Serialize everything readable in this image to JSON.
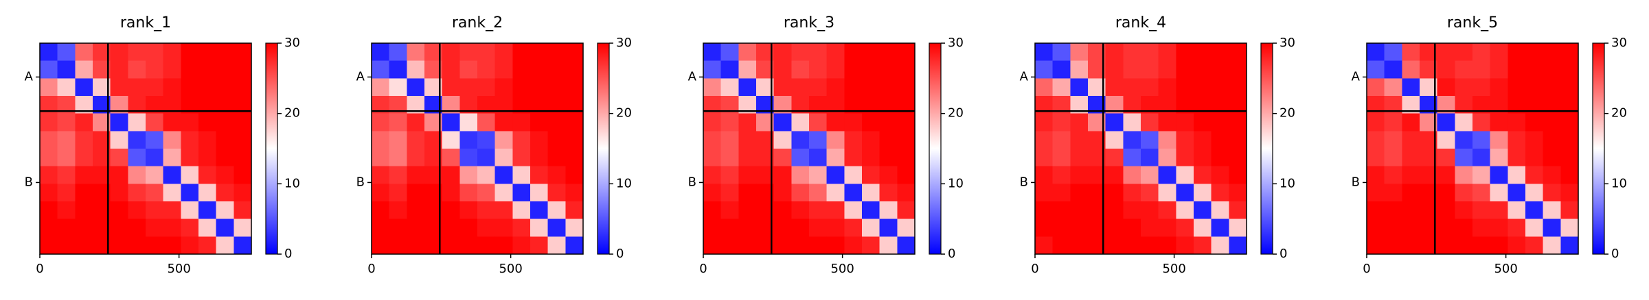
{
  "chart_data": [
    {
      "type": "heatmap",
      "title": "rank_1",
      "xlim": [
        0,
        760
      ],
      "ylim": [
        760,
        0
      ],
      "xticks": [
        0,
        500
      ],
      "yticks": [
        {
          "value": 122,
          "label": "A"
        },
        {
          "value": 502,
          "label": "B"
        }
      ],
      "bins": [
        0,
        63,
        127,
        190,
        253,
        317,
        380,
        443,
        507,
        570,
        633,
        697,
        760
      ],
      "boundaries": [
        245
      ],
      "zlim": [
        0,
        30
      ],
      "zticks": [
        0,
        10,
        20,
        30
      ],
      "colormap": [
        "#0000ff",
        "#ffffff",
        "#ff0000"
      ],
      "z": [
        [
          2,
          5,
          24,
          27,
          28,
          27,
          27,
          28,
          30,
          30,
          30,
          30
        ],
        [
          5,
          2,
          20,
          26,
          28,
          26,
          27,
          28,
          30,
          30,
          30,
          30
        ],
        [
          22,
          18,
          2,
          18,
          28,
          28,
          28,
          29,
          30,
          30,
          30,
          30
        ],
        [
          27,
          26,
          18,
          2,
          22,
          28,
          29,
          29,
          30,
          30,
          30,
          30
        ],
        [
          27,
          26,
          28,
          22,
          2,
          18,
          26,
          29,
          29,
          30,
          30,
          30
        ],
        [
          25,
          24,
          27,
          28,
          18,
          3,
          5,
          22,
          28,
          29,
          30,
          30
        ],
        [
          25,
          24,
          27,
          28,
          26,
          5,
          3,
          20,
          28,
          29,
          30,
          30
        ],
        [
          28,
          27,
          29,
          29,
          29,
          22,
          20,
          2,
          18,
          28,
          29,
          30
        ],
        [
          29,
          28,
          30,
          30,
          29,
          27,
          26,
          18,
          2,
          18,
          28,
          29
        ],
        [
          30,
          29,
          30,
          30,
          30,
          29,
          28,
          28,
          18,
          2,
          18,
          28
        ],
        [
          30,
          30,
          30,
          30,
          30,
          30,
          29,
          29,
          28,
          18,
          2,
          18
        ],
        [
          30,
          30,
          30,
          30,
          30,
          30,
          30,
          30,
          29,
          28,
          18,
          2
        ]
      ]
    },
    {
      "type": "heatmap",
      "title": "rank_2",
      "xlim": [
        0,
        760
      ],
      "ylim": [
        760,
        0
      ],
      "xticks": [
        0,
        500
      ],
      "yticks": [
        {
          "value": 122,
          "label": "A"
        },
        {
          "value": 502,
          "label": "B"
        }
      ],
      "bins": [
        0,
        63,
        127,
        190,
        253,
        317,
        380,
        443,
        507,
        570,
        633,
        697,
        760
      ],
      "boundaries": [
        245
      ],
      "zlim": [
        0,
        30
      ],
      "zticks": [
        0,
        10,
        20,
        30
      ],
      "colormap": [
        "#0000ff",
        "#ffffff",
        "#ff0000"
      ],
      "z": [
        [
          2,
          5,
          23,
          26,
          28,
          27,
          27,
          28,
          30,
          30,
          30,
          30
        ],
        [
          5,
          2,
          19,
          25,
          28,
          26,
          27,
          28,
          30,
          30,
          30,
          30
        ],
        [
          21,
          17,
          2,
          18,
          28,
          28,
          28,
          29,
          30,
          30,
          30,
          30
        ],
        [
          27,
          26,
          18,
          2,
          22,
          28,
          29,
          29,
          30,
          30,
          30,
          30
        ],
        [
          26,
          25,
          28,
          22,
          2,
          17,
          25,
          29,
          29,
          30,
          30,
          30
        ],
        [
          24,
          23,
          27,
          28,
          17,
          3,
          4,
          21,
          27,
          29,
          30,
          30
        ],
        [
          24,
          23,
          27,
          28,
          25,
          4,
          3,
          19,
          27,
          29,
          30,
          30
        ],
        [
          28,
          27,
          29,
          29,
          29,
          21,
          19,
          2,
          18,
          28,
          29,
          30
        ],
        [
          29,
          28,
          30,
          30,
          29,
          26,
          25,
          18,
          2,
          18,
          28,
          29
        ],
        [
          30,
          29,
          30,
          30,
          30,
          29,
          28,
          28,
          18,
          2,
          18,
          28
        ],
        [
          30,
          30,
          30,
          30,
          30,
          30,
          29,
          29,
          28,
          18,
          2,
          18
        ],
        [
          30,
          30,
          30,
          30,
          30,
          30,
          30,
          30,
          29,
          28,
          18,
          2
        ]
      ]
    },
    {
      "type": "heatmap",
      "title": "rank_3",
      "xlim": [
        0,
        760
      ],
      "ylim": [
        760,
        0
      ],
      "xticks": [
        0,
        500
      ],
      "yticks": [
        {
          "value": 122,
          "label": "A"
        },
        {
          "value": 502,
          "label": "B"
        }
      ],
      "bins": [
        0,
        63,
        127,
        190,
        253,
        317,
        380,
        443,
        507,
        570,
        633,
        697,
        760
      ],
      "boundaries": [
        245
      ],
      "zlim": [
        0,
        30
      ],
      "zticks": [
        0,
        10,
        20,
        30
      ],
      "colormap": [
        "#0000ff",
        "#ffffff",
        "#ff0000"
      ],
      "z": [
        [
          2,
          5,
          24,
          27,
          28,
          27,
          27,
          28,
          30,
          30,
          30,
          30
        ],
        [
          5,
          2,
          20,
          26,
          28,
          26,
          27,
          28,
          30,
          30,
          30,
          30
        ],
        [
          22,
          18,
          2,
          18,
          28,
          28,
          28,
          29,
          30,
          30,
          30,
          30
        ],
        [
          27,
          26,
          18,
          2,
          22,
          28,
          29,
          29,
          30,
          30,
          30,
          30
        ],
        [
          27,
          26,
          28,
          22,
          2,
          18,
          26,
          29,
          29,
          30,
          30,
          30
        ],
        [
          26,
          25,
          28,
          28,
          18,
          3,
          5,
          22,
          28,
          29,
          30,
          30
        ],
        [
          26,
          25,
          28,
          28,
          26,
          5,
          3,
          20,
          28,
          29,
          30,
          30
        ],
        [
          28,
          27,
          29,
          29,
          29,
          22,
          20,
          2,
          18,
          28,
          29,
          30
        ],
        [
          29,
          28,
          30,
          30,
          29,
          26,
          24,
          18,
          2,
          18,
          28,
          29
        ],
        [
          30,
          29,
          30,
          30,
          30,
          29,
          28,
          28,
          18,
          2,
          18,
          28
        ],
        [
          30,
          30,
          30,
          30,
          30,
          30,
          29,
          29,
          28,
          18,
          2,
          18
        ],
        [
          30,
          30,
          30,
          30,
          30,
          30,
          30,
          30,
          29,
          28,
          18,
          2
        ]
      ]
    },
    {
      "type": "heatmap",
      "title": "rank_4",
      "xlim": [
        0,
        760
      ],
      "ylim": [
        760,
        0
      ],
      "xticks": [
        0,
        500
      ],
      "yticks": [
        {
          "value": 122,
          "label": "A"
        },
        {
          "value": 502,
          "label": "B"
        }
      ],
      "bins": [
        0,
        63,
        127,
        190,
        253,
        317,
        380,
        443,
        507,
        570,
        633,
        697,
        760
      ],
      "boundaries": [
        245
      ],
      "zlim": [
        0,
        30
      ],
      "zticks": [
        0,
        10,
        20,
        30
      ],
      "colormap": [
        "#0000ff",
        "#ffffff",
        "#ff0000"
      ],
      "z": [
        [
          2,
          5,
          23,
          26,
          28,
          27,
          27,
          28,
          30,
          30,
          30,
          30
        ],
        [
          5,
          2,
          20,
          26,
          28,
          27,
          27,
          28,
          30,
          30,
          30,
          30
        ],
        [
          24,
          20,
          2,
          18,
          28,
          28,
          28,
          29,
          30,
          30,
          30,
          30
        ],
        [
          28,
          27,
          18,
          2,
          22,
          28,
          29,
          29,
          30,
          30,
          30,
          30
        ],
        [
          28,
          27,
          28,
          22,
          2,
          18,
          27,
          29,
          29,
          30,
          30,
          30
        ],
        [
          27,
          26,
          28,
          28,
          18,
          3,
          5,
          22,
          28,
          29,
          30,
          30
        ],
        [
          27,
          26,
          28,
          28,
          27,
          5,
          3,
          21,
          28,
          29,
          30,
          30
        ],
        [
          29,
          28,
          29,
          29,
          29,
          23,
          21,
          2,
          18,
          28,
          29,
          30
        ],
        [
          29,
          29,
          30,
          30,
          30,
          28,
          27,
          18,
          2,
          18,
          28,
          29
        ],
        [
          30,
          30,
          30,
          30,
          30,
          29,
          29,
          28,
          18,
          2,
          18,
          28
        ],
        [
          30,
          30,
          30,
          30,
          30,
          30,
          29,
          29,
          28,
          18,
          2,
          18
        ],
        [
          29,
          30,
          30,
          30,
          30,
          30,
          30,
          30,
          29,
          28,
          18,
          2
        ]
      ]
    },
    {
      "type": "heatmap",
      "title": "rank_5",
      "xlim": [
        0,
        760
      ],
      "ylim": [
        760,
        0
      ],
      "xticks": [
        0,
        500
      ],
      "yticks": [
        {
          "value": 122,
          "label": "A"
        },
        {
          "value": 502,
          "label": "B"
        }
      ],
      "bins": [
        0,
        63,
        127,
        190,
        253,
        317,
        380,
        443,
        507,
        570,
        633,
        697,
        760
      ],
      "boundaries": [
        245
      ],
      "zlim": [
        0,
        30
      ],
      "zticks": [
        0,
        10,
        20,
        30
      ],
      "colormap": [
        "#0000ff",
        "#ffffff",
        "#ff0000"
      ],
      "z": [
        [
          2,
          5,
          26,
          28,
          28,
          28,
          27,
          28,
          30,
          30,
          30,
          30
        ],
        [
          5,
          2,
          24,
          27,
          28,
          27,
          27,
          28,
          30,
          30,
          30,
          30
        ],
        [
          25,
          22,
          2,
          18,
          29,
          28,
          28,
          29,
          30,
          30,
          30,
          30
        ],
        [
          28,
          27,
          18,
          2,
          22,
          28,
          29,
          29,
          30,
          30,
          30,
          30
        ],
        [
          28,
          27,
          29,
          22,
          2,
          18,
          27,
          29,
          29,
          30,
          30,
          30
        ],
        [
          27,
          26,
          28,
          28,
          18,
          3,
          5,
          22,
          28,
          29,
          30,
          30
        ],
        [
          27,
          26,
          28,
          28,
          27,
          5,
          3,
          20,
          28,
          29,
          30,
          30
        ],
        [
          29,
          28,
          29,
          29,
          29,
          22,
          20,
          2,
          18,
          28,
          29,
          30
        ],
        [
          29,
          29,
          30,
          30,
          30,
          27,
          26,
          18,
          2,
          18,
          28,
          29
        ],
        [
          30,
          30,
          30,
          30,
          30,
          29,
          28,
          28,
          18,
          2,
          18,
          28
        ],
        [
          30,
          30,
          30,
          30,
          30,
          30,
          29,
          29,
          28,
          18,
          2,
          18
        ],
        [
          30,
          30,
          30,
          30,
          30,
          30,
          30,
          30,
          29,
          28,
          18,
          2
        ]
      ]
    }
  ]
}
